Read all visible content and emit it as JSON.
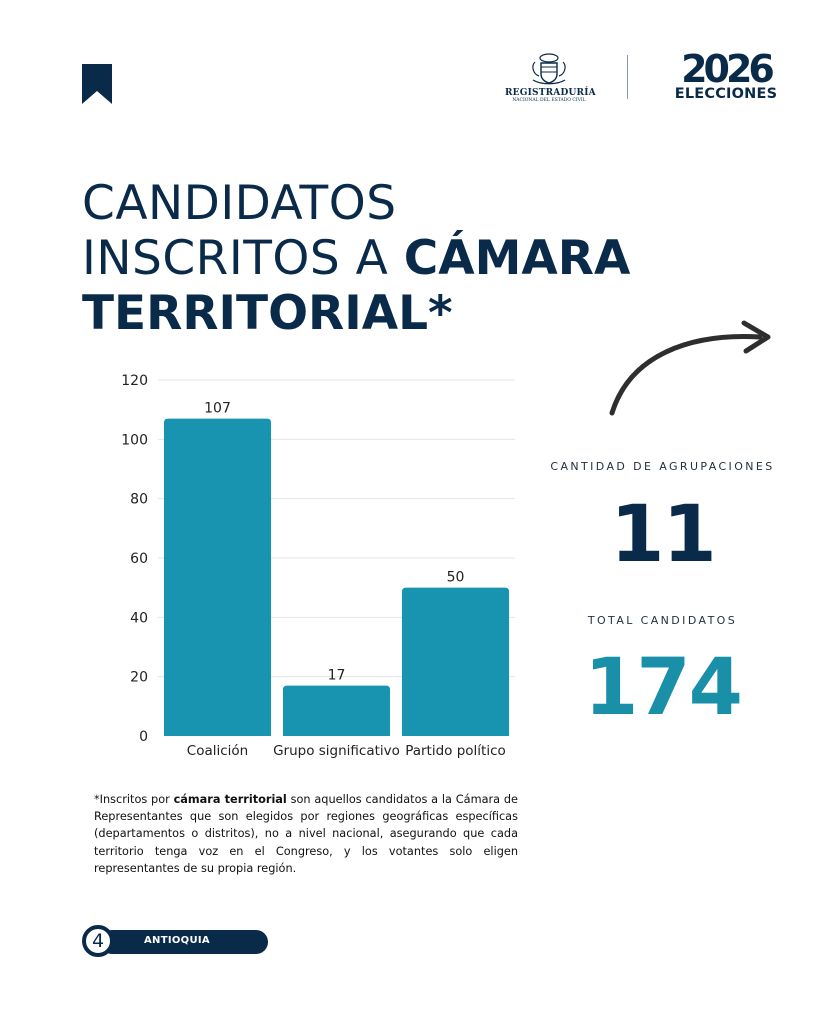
{
  "header": {
    "registraduria_line1": "REGISTRADURÍA",
    "registraduria_line2": "NACIONAL DEL ESTADO CIVIL",
    "year": "2026",
    "elecciones": "ELECCIONES"
  },
  "title": {
    "line1": "CANDIDATOS",
    "line2_light": "INSCRITOS A ",
    "line2_bold": "CÁMARA",
    "line3_bold": "TERRITORIAL*"
  },
  "stats": {
    "agrupaciones_label": "CANTIDAD DE AGRUPACIONES",
    "agrupaciones_value": "11",
    "candidatos_label": "TOTAL CANDIDATOS",
    "candidatos_value": "174"
  },
  "footnote": {
    "prefix": "*Inscritos por ",
    "bold": "cámara territorial",
    "rest": " son aquellos candidatos a la Cámara de Representantes que son elegidos por regiones geográficas específicas (departamentos o distritos), no a nivel nacional, asegurando que cada territorio tenga voz en el Congreso, y los votantes solo eligen representantes de su propia región."
  },
  "footer": {
    "page_number": "4",
    "region": "ANTIOQUIA"
  },
  "colors": {
    "navy": "#0a2a4a",
    "teal": "#1a8fa8",
    "bar": "#1994b0"
  },
  "chart_data": {
    "type": "bar",
    "categories": [
      "Coalición",
      "Grupo significativo",
      "Partido político"
    ],
    "values": [
      107,
      17,
      50
    ],
    "ylim": [
      0,
      120
    ],
    "yticks": [
      0,
      20,
      40,
      60,
      80,
      100,
      120
    ],
    "grid": true,
    "title": "",
    "xlabel": "",
    "ylabel": ""
  }
}
